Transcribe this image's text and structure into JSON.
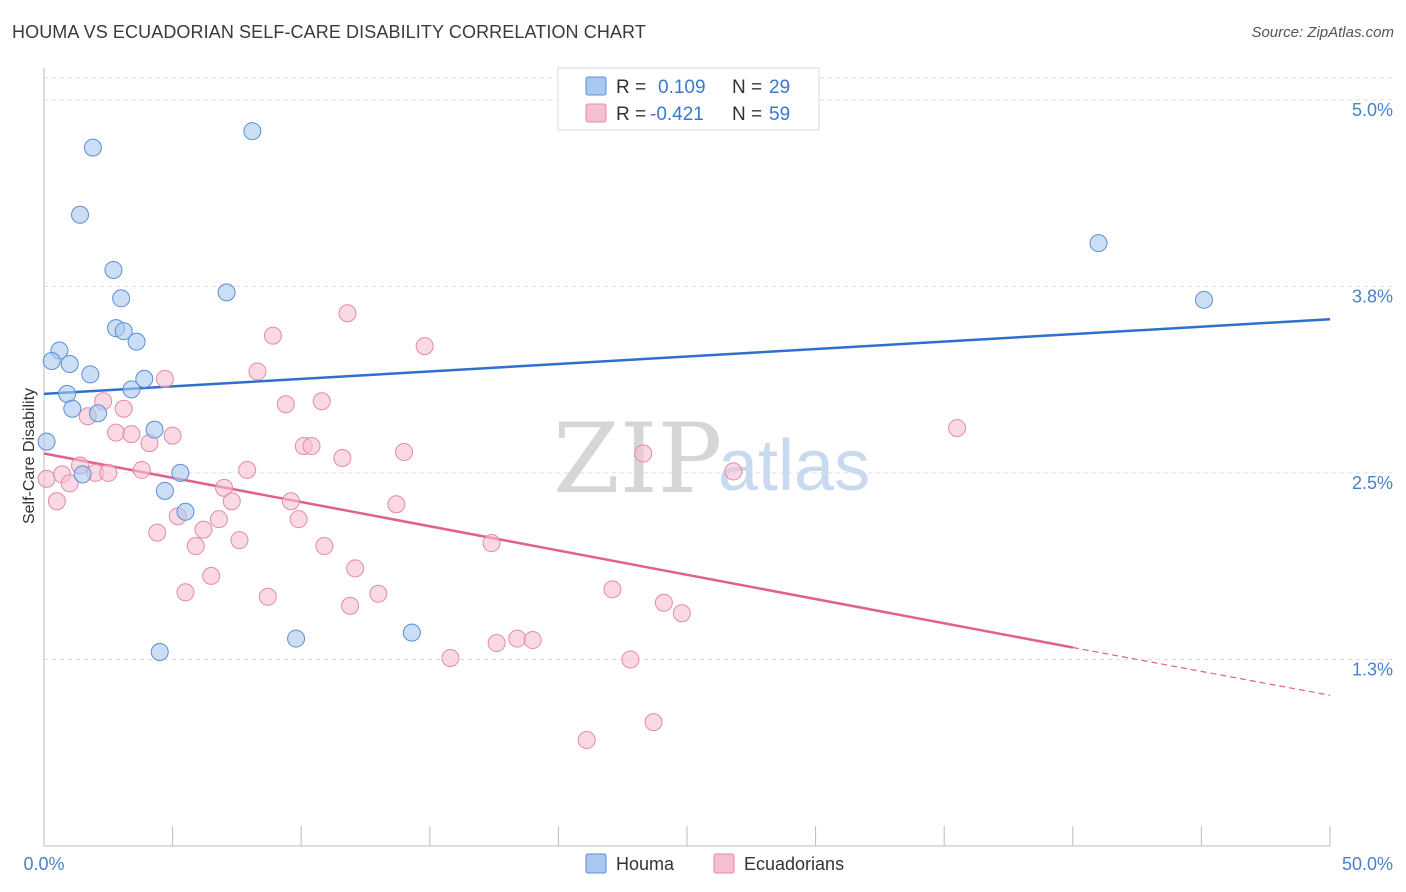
{
  "title": "HOUMA VS ECUADORIAN SELF-CARE DISABILITY CORRELATION CHART",
  "source": "Source: ZipAtlas.com",
  "watermark": {
    "zip": "ZIP",
    "atlas": "atlas"
  },
  "colors": {
    "houma": "#a9c8ef",
    "houma_stroke": "#5b8fd4",
    "houma_line": "#2f6fce",
    "ecuadorians": "#f6c0d3",
    "ecuadorians_stroke": "#e48aab",
    "ecuadorians_line": "#e0608e",
    "tick": "#4a7fcb",
    "grid": "#dddddd"
  },
  "legend": {
    "rows": [
      {
        "r_label": "R =",
        "r_value": "0.109",
        "n_label": "N =",
        "n_value": "29"
      },
      {
        "r_label": "R =",
        "r_value": "-0.421",
        "n_label": "N =",
        "n_value": "59"
      }
    ]
  },
  "chart_data": {
    "type": "scatter",
    "title": "HOUMA VS ECUADORIAN SELF-CARE DISABILITY CORRELATION CHART",
    "xlabel": "",
    "ylabel": "Self-Care Disability",
    "xlim": [
      0,
      50
    ],
    "ylim": [
      0,
      5.2
    ],
    "x_tick_labels": [
      "0.0%",
      "50.0%"
    ],
    "y_ticks": [
      1.25,
      2.5,
      3.75,
      5.0
    ],
    "y_tick_labels": [
      "1.3%",
      "2.5%",
      "3.8%",
      "5.0%"
    ],
    "grid": true,
    "legend_position": "top-center",
    "series": [
      {
        "name": "Houma",
        "r": 0.109,
        "n": 29,
        "trend": {
          "x": [
            0,
            50
          ],
          "y": [
            3.03,
            3.53
          ]
        },
        "points": [
          [
            0.1,
            2.71
          ],
          [
            0.6,
            3.32
          ],
          [
            0.9,
            3.03
          ],
          [
            1.0,
            3.23
          ],
          [
            1.1,
            2.93
          ],
          [
            1.5,
            2.49
          ],
          [
            1.8,
            3.16
          ],
          [
            1.9,
            4.68
          ],
          [
            2.1,
            2.9
          ],
          [
            1.4,
            4.23
          ],
          [
            2.7,
            3.86
          ],
          [
            2.8,
            3.47
          ],
          [
            3.1,
            3.45
          ],
          [
            3.0,
            3.67
          ],
          [
            3.4,
            3.06
          ],
          [
            3.6,
            3.38
          ],
          [
            3.9,
            3.13
          ],
          [
            4.3,
            2.79
          ],
          [
            4.5,
            1.3
          ],
          [
            4.7,
            2.38
          ],
          [
            5.3,
            2.5
          ],
          [
            5.5,
            2.24
          ],
          [
            7.1,
            3.71
          ],
          [
            8.1,
            4.79
          ],
          [
            9.8,
            1.39
          ],
          [
            14.3,
            1.43
          ],
          [
            41.0,
            4.04
          ],
          [
            45.1,
            3.66
          ],
          [
            0.3,
            3.25
          ]
        ]
      },
      {
        "name": "Ecuadorians",
        "r": -0.421,
        "n": 59,
        "trend": {
          "x": [
            0,
            40
          ],
          "y": [
            2.63,
            1.33
          ]
        },
        "trend_dashed": {
          "x": [
            40,
            50
          ],
          "y": [
            1.33,
            1.01
          ]
        },
        "points": [
          [
            0.1,
            2.46
          ],
          [
            0.5,
            2.31
          ],
          [
            0.7,
            2.49
          ],
          [
            1.0,
            2.43
          ],
          [
            1.4,
            2.55
          ],
          [
            1.7,
            2.88
          ],
          [
            2.0,
            2.5
          ],
          [
            2.3,
            2.98
          ],
          [
            2.5,
            2.5
          ],
          [
            2.8,
            2.77
          ],
          [
            3.1,
            2.93
          ],
          [
            3.4,
            2.76
          ],
          [
            3.8,
            2.52
          ],
          [
            4.1,
            2.7
          ],
          [
            4.4,
            2.1
          ],
          [
            4.7,
            3.13
          ],
          [
            5.0,
            2.75
          ],
          [
            5.2,
            2.21
          ],
          [
            5.5,
            1.7
          ],
          [
            5.9,
            2.01
          ],
          [
            6.2,
            2.12
          ],
          [
            6.5,
            1.81
          ],
          [
            6.8,
            2.19
          ],
          [
            7.0,
            2.4
          ],
          [
            7.3,
            2.31
          ],
          [
            7.6,
            2.05
          ],
          [
            7.9,
            2.52
          ],
          [
            8.3,
            3.18
          ],
          [
            8.7,
            1.67
          ],
          [
            8.9,
            3.42
          ],
          [
            9.4,
            2.96
          ],
          [
            9.6,
            2.31
          ],
          [
            9.9,
            2.19
          ],
          [
            10.1,
            2.68
          ],
          [
            10.4,
            2.68
          ],
          [
            10.8,
            2.98
          ],
          [
            10.9,
            2.01
          ],
          [
            11.6,
            2.6
          ],
          [
            11.8,
            3.57
          ],
          [
            11.9,
            1.61
          ],
          [
            12.1,
            1.86
          ],
          [
            13.0,
            1.69
          ],
          [
            13.7,
            2.29
          ],
          [
            14.0,
            2.64
          ],
          [
            14.8,
            3.35
          ],
          [
            15.8,
            1.26
          ],
          [
            17.4,
            2.03
          ],
          [
            17.6,
            1.36
          ],
          [
            18.4,
            1.39
          ],
          [
            19.0,
            1.38
          ],
          [
            21.1,
            0.71
          ],
          [
            22.1,
            1.72
          ],
          [
            22.8,
            1.25
          ],
          [
            23.3,
            2.63
          ],
          [
            23.7,
            0.83
          ],
          [
            24.1,
            1.63
          ],
          [
            24.8,
            1.56
          ],
          [
            26.8,
            2.51
          ],
          [
            35.5,
            2.8
          ]
        ]
      }
    ]
  }
}
